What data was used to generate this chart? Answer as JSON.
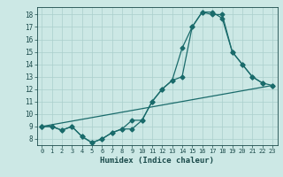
{
  "xlabel": "Humidex (Indice chaleur)",
  "bg_color": "#cce8e5",
  "grid_color": "#aacfcc",
  "line_color": "#1a6b6b",
  "xlim": [
    -0.5,
    23.5
  ],
  "ylim": [
    7.5,
    18.6
  ],
  "xticks": [
    0,
    1,
    2,
    3,
    4,
    5,
    6,
    7,
    8,
    9,
    10,
    11,
    12,
    13,
    14,
    15,
    16,
    17,
    18,
    19,
    20,
    21,
    22,
    23
  ],
  "yticks": [
    8,
    9,
    10,
    11,
    12,
    13,
    14,
    15,
    16,
    17,
    18
  ],
  "line1_x": [
    0,
    1,
    2,
    3,
    4,
    5,
    6,
    7,
    8,
    9,
    10,
    11,
    12,
    13,
    14,
    15,
    16,
    17,
    18,
    19,
    20,
    21,
    22
  ],
  "line1_y": [
    9.0,
    9.0,
    8.7,
    9.0,
    8.2,
    7.7,
    8.0,
    8.5,
    8.8,
    9.5,
    9.5,
    11.0,
    12.0,
    12.7,
    15.3,
    17.0,
    18.2,
    18.2,
    17.7,
    15.0,
    14.0,
    13.0,
    12.5
  ],
  "line2_x": [
    0,
    1,
    2,
    3,
    4,
    5,
    6,
    7,
    8,
    9,
    10,
    11,
    12,
    13,
    14,
    15,
    16,
    17,
    18,
    19,
    20,
    21,
    22,
    23
  ],
  "line2_y": [
    9.0,
    9.0,
    8.7,
    9.0,
    8.2,
    7.7,
    8.0,
    8.5,
    8.8,
    8.8,
    9.5,
    11.0,
    12.0,
    12.7,
    13.0,
    17.0,
    18.2,
    18.0,
    18.0,
    15.0,
    14.0,
    13.0,
    12.5,
    12.3
  ],
  "line3_x": [
    0,
    23
  ],
  "line3_y": [
    9.0,
    12.3
  ],
  "markersize": 2.5,
  "linewidth": 0.9
}
